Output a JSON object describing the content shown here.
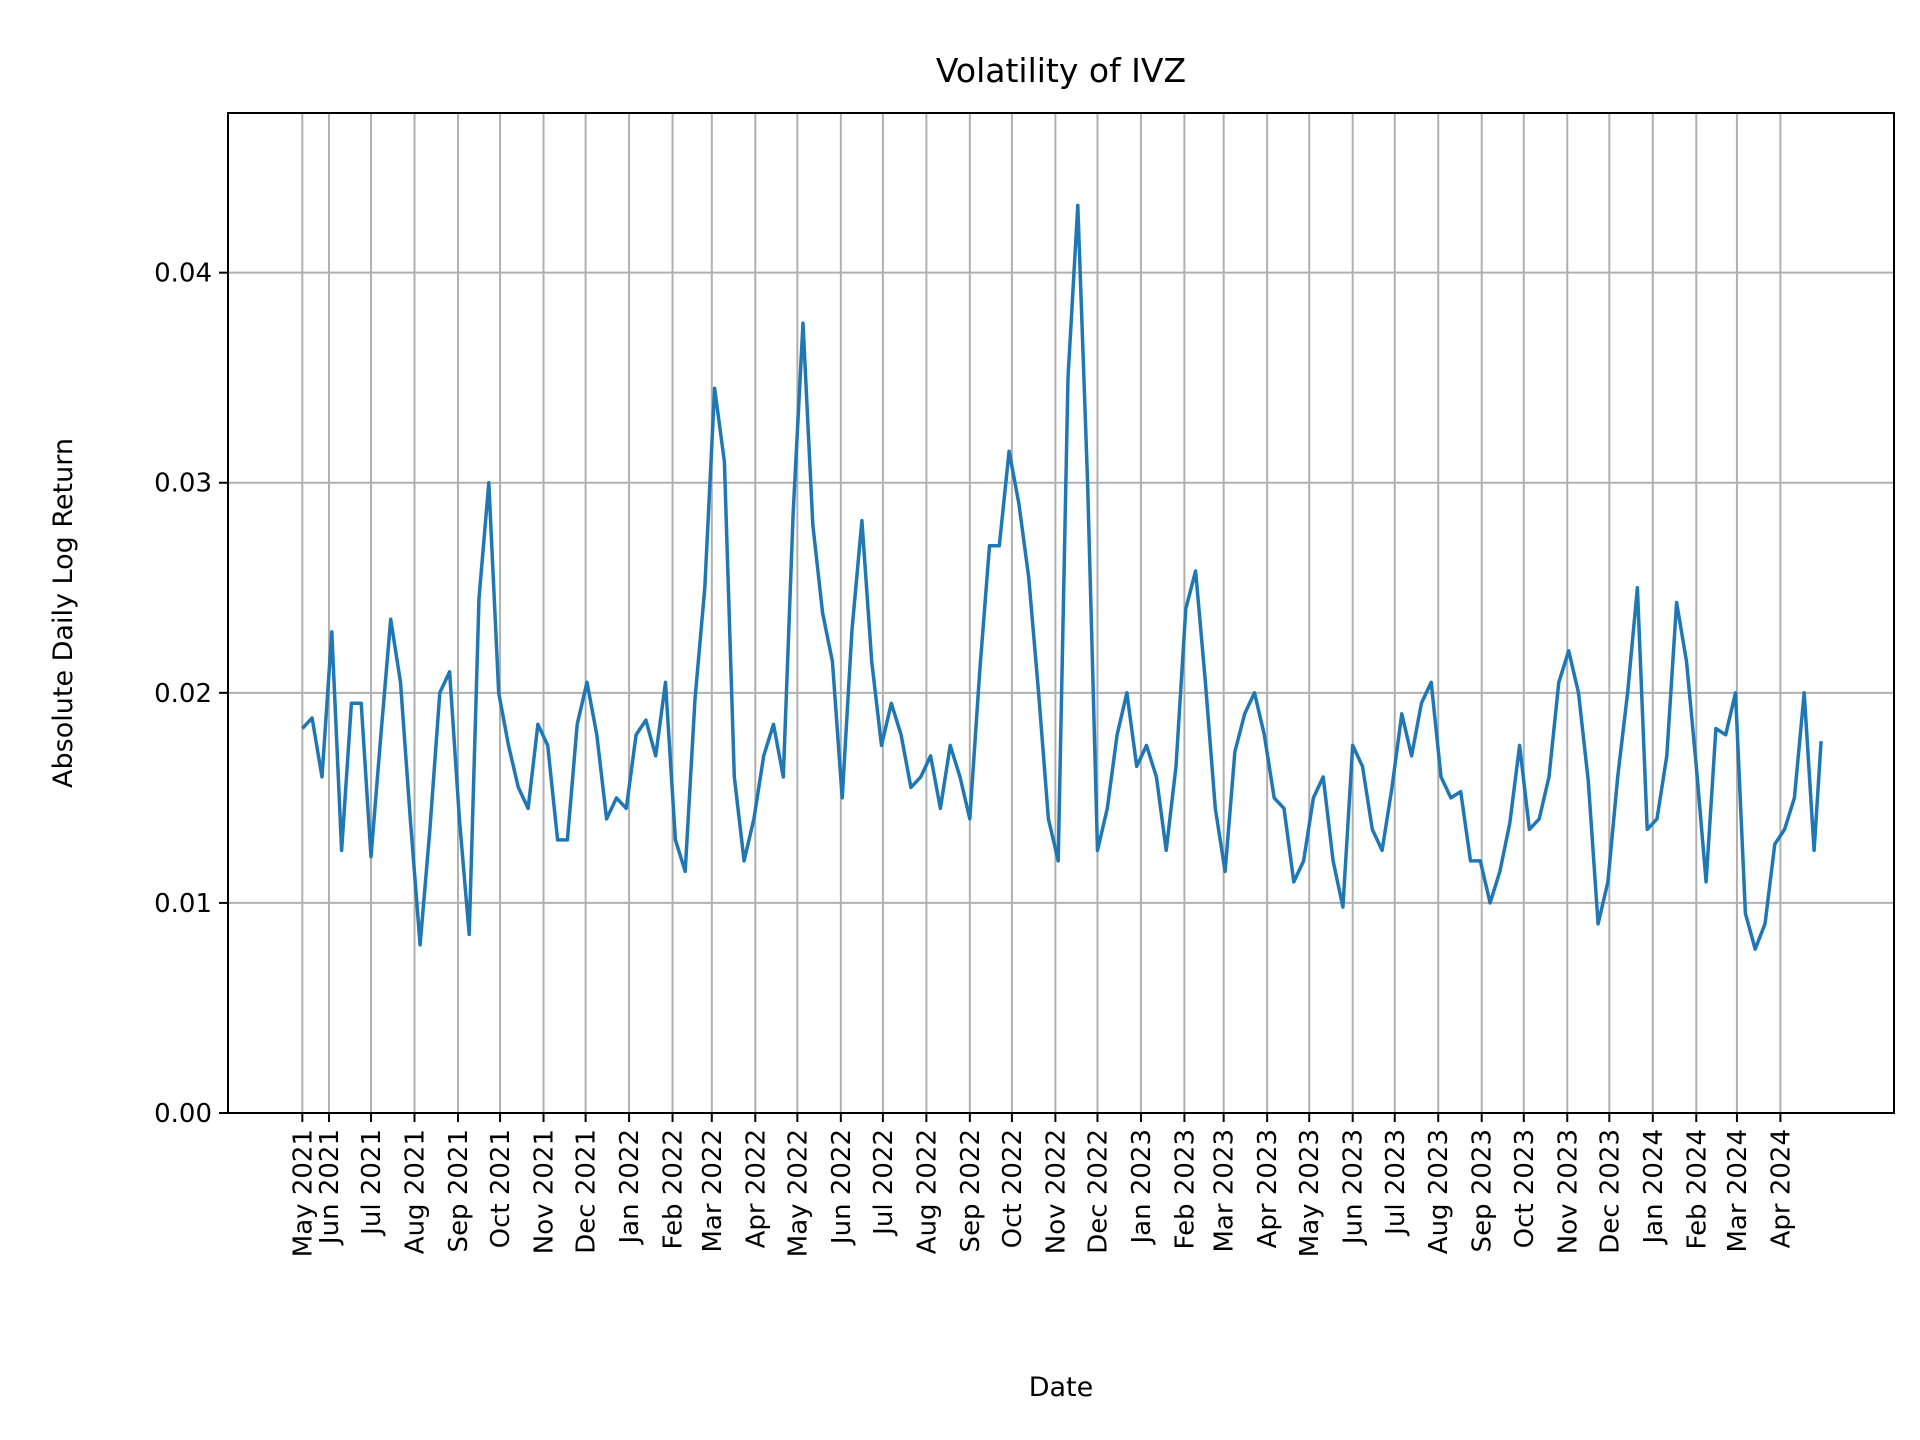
{
  "chart_data": {
    "type": "line",
    "title": "Volatility of IVZ",
    "xlabel": "Date",
    "ylabel": "Absolute Daily Log Return",
    "xlim": [
      "2021-03-21",
      "2024-06-21"
    ],
    "ylim": [
      0,
      0.0476
    ],
    "grid": true,
    "line_color": "#1f77b4",
    "y_ticks": [
      0.0,
      0.01,
      0.02,
      0.03,
      0.04
    ],
    "y_tick_labels": [
      "0.00",
      "0.01",
      "0.02",
      "0.03",
      "0.04"
    ],
    "x_tick_labels": [
      "May 2021",
      "Jun 2021",
      "Jul 2021",
      "Aug 2021",
      "Sep 2021",
      "Oct 2021",
      "Nov 2021",
      "Dec 2021",
      "Jan 2022",
      "Feb 2022",
      "Mar 2022",
      "Apr 2022",
      "May 2022",
      "Jun 2022",
      "Jul 2022",
      "Aug 2022",
      "Sep 2022",
      "Oct 2022",
      "Nov 2022",
      "Dec 2022",
      "Jan 2023",
      "Feb 2023",
      "Mar 2023",
      "Apr 2023",
      "May 2023",
      "Jun 2023",
      "Jul 2023",
      "Aug 2023",
      "Sep 2023",
      "Oct 2023",
      "Nov 2023",
      "Dec 2023",
      "Jan 2024",
      "Feb 2024",
      "Mar 2024",
      "Apr 2024"
    ],
    "x_tick_dates": [
      "2021-05-13",
      "2021-06-01",
      "2021-07-01",
      "2021-08-01",
      "2021-09-01",
      "2021-10-01",
      "2021-11-01",
      "2021-12-01",
      "2022-01-01",
      "2022-02-01",
      "2022-03-01",
      "2022-04-01",
      "2022-05-01",
      "2022-06-01",
      "2022-07-01",
      "2022-08-01",
      "2022-09-01",
      "2022-10-01",
      "2022-11-01",
      "2022-12-01",
      "2023-01-01",
      "2023-02-01",
      "2023-03-01",
      "2023-04-01",
      "2023-05-01",
      "2023-06-01",
      "2023-07-01",
      "2023-08-01",
      "2023-09-01",
      "2023-10-01",
      "2023-11-01",
      "2023-12-01",
      "2024-01-01",
      "2024-02-01",
      "2024-03-01",
      "2024-04-01"
    ],
    "series": [
      {
        "x": [
          "2021-05-13",
          "2021-05-20",
          "2021-05-27",
          "2021-06-03",
          "2021-06-10",
          "2021-06-17",
          "2021-06-24",
          "2021-07-01",
          "2021-07-08",
          "2021-07-15",
          "2021-07-22",
          "2021-07-29",
          "2021-08-05",
          "2021-08-12",
          "2021-08-19",
          "2021-08-26",
          "2021-09-02",
          "2021-09-09",
          "2021-09-16",
          "2021-09-23",
          "2021-09-30",
          "2021-10-07",
          "2021-10-14",
          "2021-10-21",
          "2021-10-28",
          "2021-11-04",
          "2021-11-11",
          "2021-11-18",
          "2021-11-25",
          "2021-12-02",
          "2021-12-09",
          "2021-12-16",
          "2021-12-23",
          "2021-12-30",
          "2022-01-06",
          "2022-01-13",
          "2022-01-20",
          "2022-01-27",
          "2022-02-03",
          "2022-02-10",
          "2022-02-17",
          "2022-02-24",
          "2022-03-03",
          "2022-03-10",
          "2022-03-17",
          "2022-03-24",
          "2022-03-31",
          "2022-04-07",
          "2022-04-14",
          "2022-04-21",
          "2022-04-28",
          "2022-05-05",
          "2022-05-12",
          "2022-05-19",
          "2022-05-26",
          "2022-06-02",
          "2022-06-09",
          "2022-06-16",
          "2022-06-23",
          "2022-06-30",
          "2022-07-07",
          "2022-07-14",
          "2022-07-21",
          "2022-07-28",
          "2022-08-04",
          "2022-08-11",
          "2022-08-18",
          "2022-08-25",
          "2022-09-01",
          "2022-09-08",
          "2022-09-15",
          "2022-09-22",
          "2022-09-29",
          "2022-10-06",
          "2022-10-13",
          "2022-10-20",
          "2022-10-27",
          "2022-11-03",
          "2022-11-10",
          "2022-11-17",
          "2022-11-24",
          "2022-12-01",
          "2022-12-08",
          "2022-12-15",
          "2022-12-22",
          "2022-12-29",
          "2023-01-05",
          "2023-01-12",
          "2023-01-19",
          "2023-01-26",
          "2023-02-02",
          "2023-02-09",
          "2023-02-16",
          "2023-02-23",
          "2023-03-02",
          "2023-03-09",
          "2023-03-16",
          "2023-03-23",
          "2023-03-30",
          "2023-04-06",
          "2023-04-13",
          "2023-04-20",
          "2023-04-27",
          "2023-05-04",
          "2023-05-11",
          "2023-05-18",
          "2023-05-25",
          "2023-06-01",
          "2023-06-08",
          "2023-06-15",
          "2023-06-22",
          "2023-06-29",
          "2023-07-06",
          "2023-07-13",
          "2023-07-20",
          "2023-07-27",
          "2023-08-03",
          "2023-08-10",
          "2023-08-17",
          "2023-08-24",
          "2023-08-31",
          "2023-09-07",
          "2023-09-14",
          "2023-09-21",
          "2023-09-28",
          "2023-10-05",
          "2023-10-12",
          "2023-10-19",
          "2023-10-26",
          "2023-11-02",
          "2023-11-09",
          "2023-11-16",
          "2023-11-23",
          "2023-11-30",
          "2023-12-07",
          "2023-12-14",
          "2023-12-21",
          "2023-12-28",
          "2024-01-04",
          "2024-01-11",
          "2024-01-18",
          "2024-01-25",
          "2024-02-01",
          "2024-02-08",
          "2024-02-15",
          "2024-02-22",
          "2024-02-29",
          "2024-03-07",
          "2024-03-14",
          "2024-03-21",
          "2024-03-28",
          "2024-04-04",
          "2024-04-11",
          "2024-04-18",
          "2024-04-25",
          "2024-04-30"
        ],
        "y": [
          0.0183,
          0.0188,
          0.016,
          0.0229,
          0.0125,
          0.0195,
          0.0195,
          0.0122,
          0.018,
          0.0235,
          0.0205,
          0.014,
          0.008,
          0.0135,
          0.02,
          0.021,
          0.014,
          0.0085,
          0.0245,
          0.03,
          0.02,
          0.0175,
          0.0155,
          0.0145,
          0.0185,
          0.0175,
          0.013,
          0.013,
          0.0185,
          0.0205,
          0.018,
          0.014,
          0.015,
          0.0145,
          0.018,
          0.0187,
          0.017,
          0.0205,
          0.013,
          0.0115,
          0.0197,
          0.025,
          0.0345,
          0.031,
          0.016,
          0.012,
          0.014,
          0.017,
          0.0185,
          0.016,
          0.0285,
          0.0376,
          0.028,
          0.0238,
          0.0215,
          0.015,
          0.023,
          0.0282,
          0.0215,
          0.0175,
          0.0195,
          0.018,
          0.0155,
          0.016,
          0.017,
          0.0145,
          0.0175,
          0.016,
          0.014,
          0.021,
          0.027,
          0.027,
          0.0315,
          0.029,
          0.0255,
          0.02,
          0.014,
          0.012,
          0.035,
          0.0432,
          0.03,
          0.0125,
          0.0145,
          0.018,
          0.02,
          0.0165,
          0.0175,
          0.016,
          0.0125,
          0.0165,
          0.024,
          0.0258,
          0.0205,
          0.0145,
          0.0115,
          0.0172,
          0.019,
          0.02,
          0.018,
          0.015,
          0.0145,
          0.011,
          0.012,
          0.015,
          0.016,
          0.012,
          0.0098,
          0.0175,
          0.0165,
          0.0135,
          0.0125,
          0.0155,
          0.019,
          0.017,
          0.0195,
          0.0205,
          0.016,
          0.015,
          0.0153,
          0.012,
          0.012,
          0.01,
          0.0115,
          0.0138,
          0.0175,
          0.0135,
          0.014,
          0.016,
          0.0205,
          0.022,
          0.02,
          0.0158,
          0.009,
          0.011,
          0.016,
          0.02,
          0.025,
          0.0135,
          0.014,
          0.017,
          0.0243,
          0.0215,
          0.0165,
          0.011,
          0.0183,
          0.018,
          0.02,
          0.0095,
          0.0078,
          0.009,
          0.0128,
          0.0135,
          0.015,
          0.02,
          0.0125,
          0.0177
        ]
      }
    ]
  }
}
